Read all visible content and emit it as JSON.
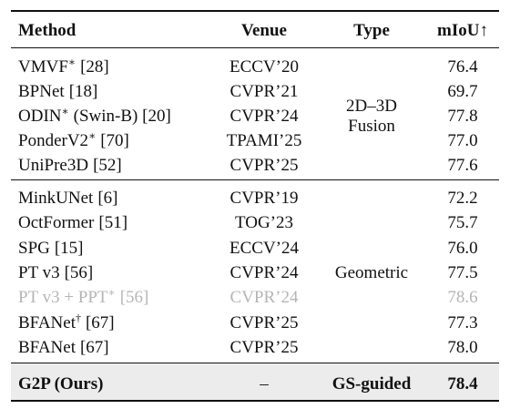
{
  "table": {
    "header": [
      "Method",
      "Venue",
      "Type",
      "mIoU↑"
    ],
    "groups": [
      {
        "type": [
          "2D–3D",
          "Fusion"
        ],
        "rows": [
          {
            "method": "VMVF",
            "sup": "∗",
            "ref": "[28]",
            "venue": "ECCV’20",
            "miou": "76.4"
          },
          {
            "method": "BPNet",
            "ref": "[18]",
            "venue": "CVPR’21",
            "miou": "69.7"
          },
          {
            "method": "ODIN",
            "sup": "∗",
            "ref": "(Swin-B) [20]",
            "venue": "CVPR’24",
            "miou": "77.8"
          },
          {
            "method": "PonderV2",
            "sup": "∗",
            "ref": "[70]",
            "venue": "TPAMI’25",
            "miou": "77.0"
          },
          {
            "method": "UniPre3D",
            "ref": "[52]",
            "venue": "CVPR’25",
            "miou": "77.6"
          }
        ]
      },
      {
        "type": [
          "Geometric"
        ],
        "rows": [
          {
            "method": "MinkUNet",
            "ref": "[6]",
            "venue": "CVPR’19",
            "miou": "72.2"
          },
          {
            "method": "OctFormer",
            "ref": "[51]",
            "venue": "TOG’23",
            "miou": "75.7"
          },
          {
            "method": "SPG",
            "ref": "[15]",
            "venue": "ECCV’24",
            "miou": "76.0"
          },
          {
            "method": "PT v3",
            "ref": "[56]",
            "venue": "CVPR’24",
            "miou": "77.5"
          },
          {
            "method": "PT v3 + PPT",
            "sup": "∗",
            "ref": "[56]",
            "venue": "CVPR’24",
            "miou": "78.6",
            "faded": true
          },
          {
            "method": "BFANet",
            "sup": "†",
            "ref": "[67]",
            "venue": "CVPR’25",
            "miou": "77.3"
          },
          {
            "method": "BFANet",
            "ref": "[67]",
            "venue": "CVPR’25",
            "miou": "78.0"
          }
        ]
      }
    ],
    "final": {
      "method": "G2P (Ours)",
      "venue": "–",
      "type": "GS-guided",
      "miou": "78.4"
    }
  }
}
